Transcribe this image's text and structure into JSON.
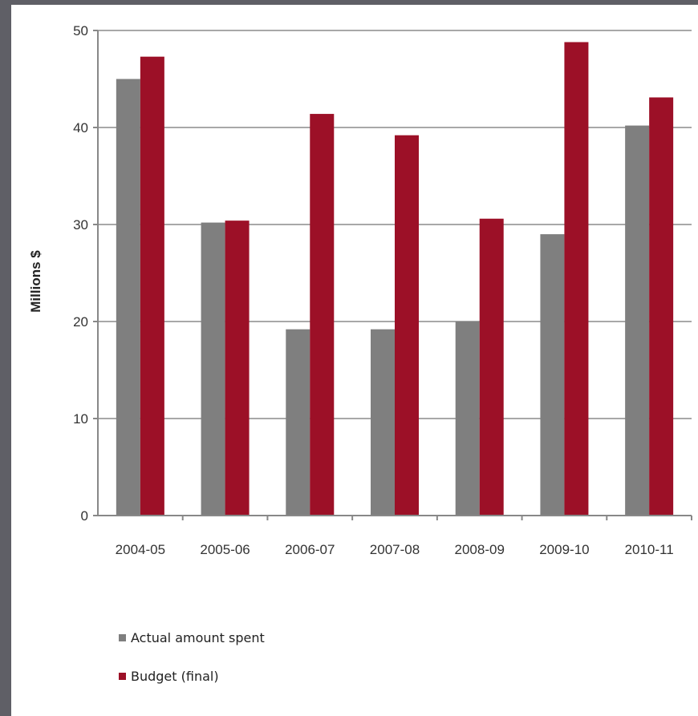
{
  "chart_data": {
    "type": "bar",
    "title": "",
    "xlabel": "",
    "ylabel": "Millions $",
    "ylim": [
      0,
      50
    ],
    "yticks": [
      "0",
      "10",
      "20",
      "30",
      "40",
      "50"
    ],
    "grid": true,
    "legend_position": "bottom-left",
    "categories": [
      "2004-05",
      "2005-06",
      "2006-07",
      "2007-08",
      "2008-09",
      "2009-10",
      "2010-11"
    ],
    "series": [
      {
        "name": "Actual amount spent",
        "color": "#7f7f7f",
        "values": [
          45,
          30.2,
          19.2,
          19.2,
          20,
          29,
          40.2
        ]
      },
      {
        "name": "Budget (final)",
        "color": "#9c1027",
        "values": [
          47.3,
          30.4,
          41.4,
          39.2,
          30.6,
          48.8,
          43.1
        ]
      }
    ]
  }
}
